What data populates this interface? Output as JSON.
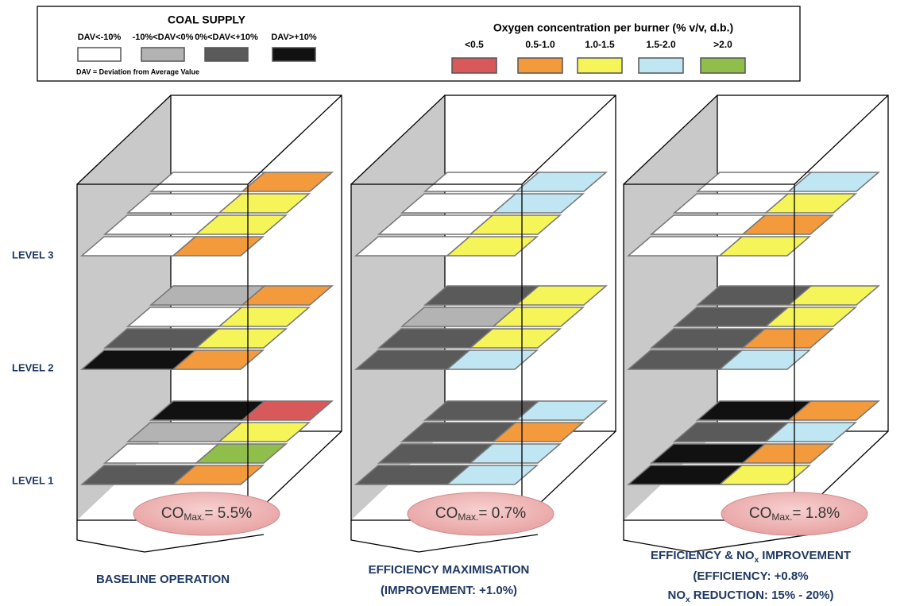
{
  "legend": {
    "coal": {
      "title": "COAL SUPPLY",
      "note": "DAV = Deviation from Average Value",
      "items": [
        {
          "label": "DAV<-10%",
          "color": "#ffffff"
        },
        {
          "label": "-10%<DAV<0%",
          "color": "#b3b3b3"
        },
        {
          "label": "0%<DAV<+10%",
          "color": "#5a5a5a"
        },
        {
          "label": "DAV>+10%",
          "color": "#111111"
        }
      ]
    },
    "oxygen": {
      "title": "Oxygen concentration per burner (% v/v, d.b.)",
      "items": [
        {
          "label": "<0.5",
          "color": "#d9585a"
        },
        {
          "label": "0.5-1.0",
          "color": "#f39a3d"
        },
        {
          "label": "1.0-1.5",
          "color": "#f5f55a"
        },
        {
          "label": "1.5-2.0",
          "color": "#bfe6f2"
        },
        {
          "label": ">2.0",
          "color": "#8fbf4a"
        }
      ]
    }
  },
  "levels": [
    "LEVEL 3",
    "LEVEL 2",
    "LEVEL 1"
  ],
  "furnaces": [
    {
      "co": {
        "text": "CO",
        "sub": "Max.",
        "value": "= 5.5%"
      },
      "caption": [
        {
          "text": "BASELINE OPERATION"
        }
      ],
      "burners": [
        [
          [
            "#ffffff",
            "#f39a3d"
          ],
          [
            "#ffffff",
            "#f5f55a"
          ],
          [
            "#ffffff",
            "#f5f55a"
          ],
          [
            "#ffffff",
            "#f39a3d"
          ]
        ],
        [
          [
            "#b3b3b3",
            "#f39a3d"
          ],
          [
            "#ffffff",
            "#f5f55a"
          ],
          [
            "#5a5a5a",
            "#f5f55a"
          ],
          [
            "#111111",
            "#f39a3d"
          ]
        ],
        [
          [
            "#111111",
            "#d9585a"
          ],
          [
            "#b3b3b3",
            "#f5f55a"
          ],
          [
            "#ffffff",
            "#8fbf4a"
          ],
          [
            "#5a5a5a",
            "#f39a3d"
          ]
        ]
      ]
    },
    {
      "co": {
        "text": "CO",
        "sub": "Max.",
        "value": "= 0.7%"
      },
      "caption": [
        {
          "text": "EFFICIENCY MAXIMISATION"
        },
        {
          "text": "(IMPROVEMENT: +1.0%)"
        }
      ],
      "burners": [
        [
          [
            "#ffffff",
            "#bfe6f2"
          ],
          [
            "#ffffff",
            "#bfe6f2"
          ],
          [
            "#ffffff",
            "#f5f55a"
          ],
          [
            "#ffffff",
            "#f5f55a"
          ]
        ],
        [
          [
            "#5a5a5a",
            "#f5f55a"
          ],
          [
            "#b3b3b3",
            "#f5f55a"
          ],
          [
            "#5a5a5a",
            "#f5f55a"
          ],
          [
            "#5a5a5a",
            "#bfe6f2"
          ]
        ],
        [
          [
            "#5a5a5a",
            "#bfe6f2"
          ],
          [
            "#5a5a5a",
            "#f39a3d"
          ],
          [
            "#5a5a5a",
            "#bfe6f2"
          ],
          [
            "#5a5a5a",
            "#bfe6f2"
          ]
        ]
      ]
    },
    {
      "co": {
        "text": "CO",
        "sub": "Max.",
        "value": "= 1.8%"
      },
      "caption": [
        {
          "text": "EFFICIENCY & NO",
          "sub": "x",
          "after": " IMPROVEMENT"
        },
        {
          "text": "(EFFICIENCY: +0.8%"
        },
        {
          "text": "NO",
          "sub": "x",
          "after": " REDUCTION:  15% - 20%)"
        }
      ],
      "burners": [
        [
          [
            "#ffffff",
            "#bfe6f2"
          ],
          [
            "#ffffff",
            "#f5f55a"
          ],
          [
            "#ffffff",
            "#f39a3d"
          ],
          [
            "#ffffff",
            "#f5f55a"
          ]
        ],
        [
          [
            "#5a5a5a",
            "#f5f55a"
          ],
          [
            "#5a5a5a",
            "#f5f55a"
          ],
          [
            "#5a5a5a",
            "#f39a3d"
          ],
          [
            "#5a5a5a",
            "#bfe6f2"
          ]
        ],
        [
          [
            "#111111",
            "#f39a3d"
          ],
          [
            "#5a5a5a",
            "#bfe6f2"
          ],
          [
            "#111111",
            "#f39a3d"
          ],
          [
            "#111111",
            "#f5f55a"
          ]
        ]
      ]
    }
  ]
}
